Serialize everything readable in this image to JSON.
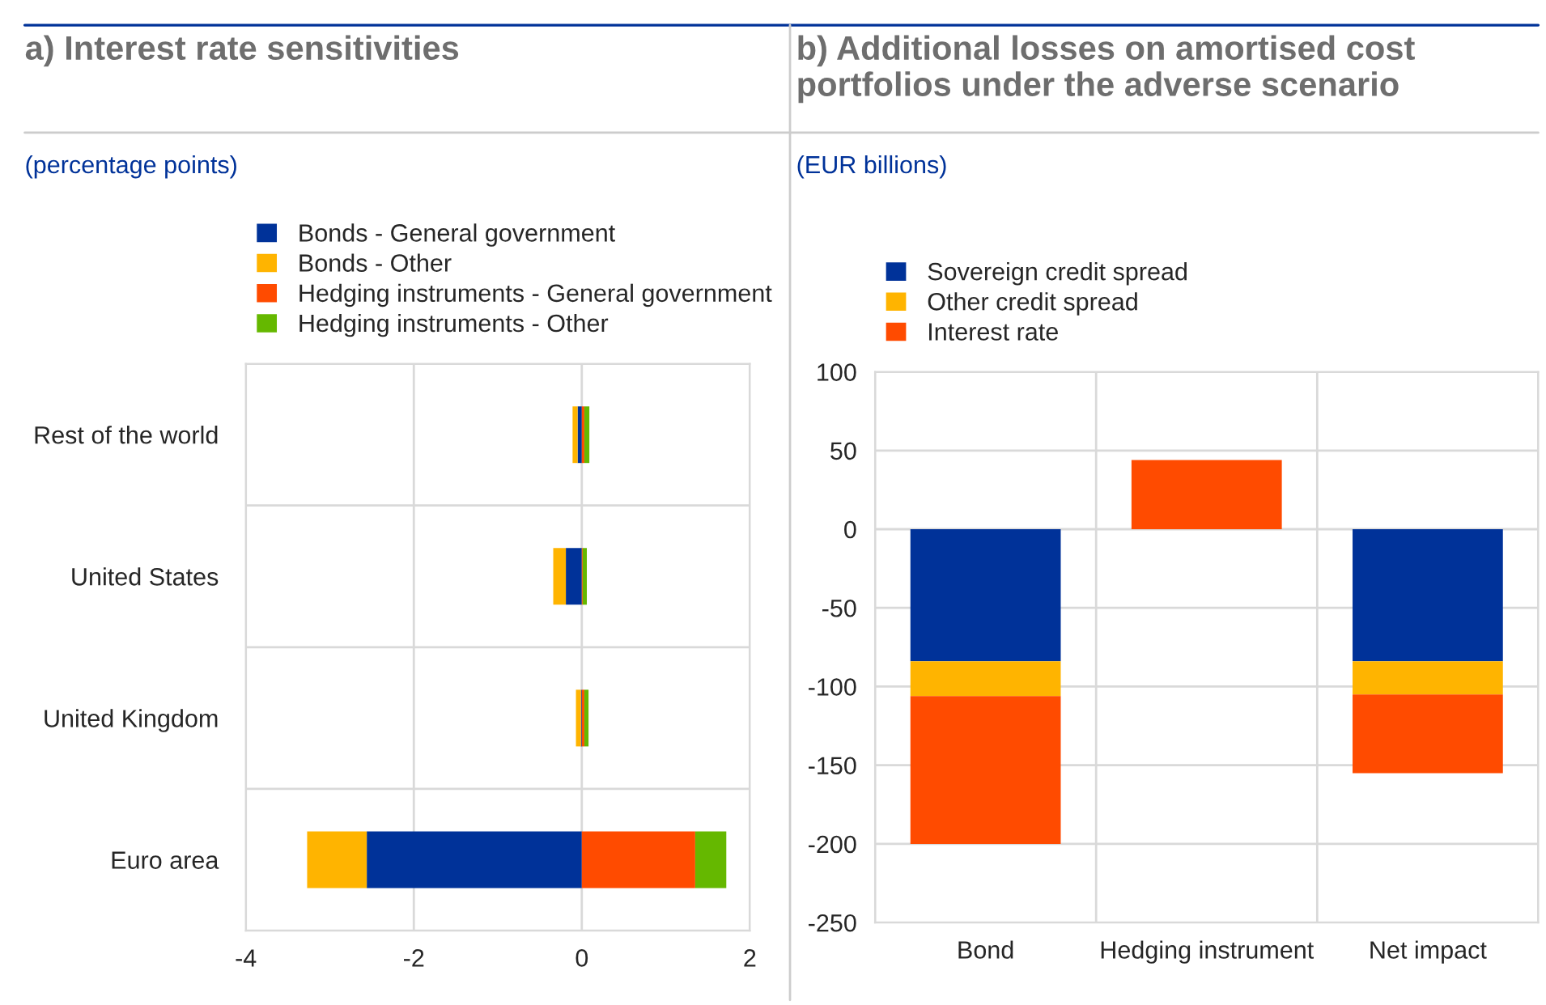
{
  "chart_data": [
    {
      "type": "bar",
      "title": "a) Interest rate sensitivities",
      "subtitle": "(percentage points)",
      "orientation": "horizontal",
      "stacked": true,
      "categories": [
        "Rest of the world",
        "United States",
        "United Kingdom",
        "Euro area"
      ],
      "series": [
        {
          "name": "Bonds - General government",
          "color": "#003299",
          "values": [
            -0.05,
            -0.19,
            -0.01,
            -2.56
          ]
        },
        {
          "name": "Bonds - Other",
          "color": "#ffb400",
          "values": [
            -0.06,
            -0.15,
            -0.06,
            -0.71
          ]
        },
        {
          "name": "Hedging instruments - General government",
          "color": "#ff4b00",
          "values": [
            0.03,
            0.01,
            0.03,
            1.35
          ]
        },
        {
          "name": "Hedging instruments - Other",
          "color": "#65b800",
          "values": [
            0.06,
            0.05,
            0.05,
            0.37
          ]
        }
      ],
      "xlim": [
        -4,
        2
      ],
      "xticks": [
        -4,
        -2,
        0,
        2
      ],
      "grid": true,
      "legend": "top"
    },
    {
      "type": "bar",
      "title": "b) Additional losses on amortised cost portfolios under the adverse scenario",
      "subtitle": "(EUR billions)",
      "stacked": true,
      "categories": [
        "Bond",
        "Hedging instrument",
        "Net impact"
      ],
      "series": [
        {
          "name": "Sovereign credit spread",
          "color": "#003299",
          "values": [
            -84,
            null,
            -84
          ]
        },
        {
          "name": "Other credit spread",
          "color": "#ffb400",
          "values": [
            -22,
            null,
            -21
          ]
        },
        {
          "name": "Interest rate",
          "color": "#ff4b00",
          "values": [
            -94,
            44,
            -50
          ]
        }
      ],
      "ylim": [
        -250,
        100
      ],
      "yticks": [
        -250,
        -200,
        -150,
        -100,
        -50,
        0,
        50,
        100
      ],
      "grid": true,
      "legend": "top"
    }
  ]
}
